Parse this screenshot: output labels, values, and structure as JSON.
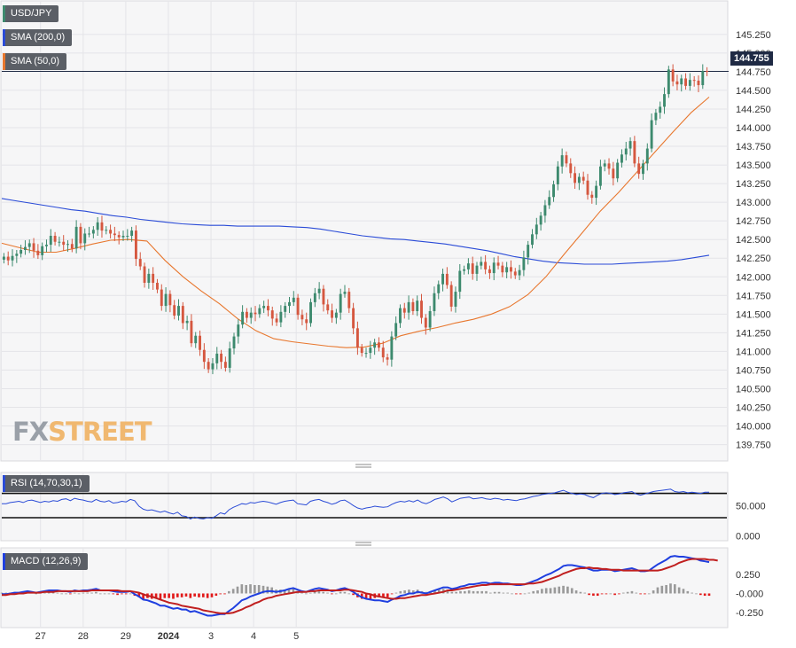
{
  "symbol": "USD/JPY",
  "last_price": "144.755",
  "watermark": {
    "part1": "FX",
    "part2": "STREET"
  },
  "colors": {
    "candle_up": "#3d8a6e",
    "candle_down": "#d5573f",
    "sma200": "#2a4bd7",
    "sma50": "#e8772e",
    "rsi": "#2a4bd7",
    "macd": "#1f3fe0",
    "signal": "#c01f1f",
    "hist_pos": "#9a9a9a",
    "hist_neg": "#e11a1a",
    "price_line": "#1f2a44"
  },
  "chart_data": [
    {
      "type": "candlestick",
      "id": "price",
      "legend": [
        "USD/JPY",
        "SMA (200,0)",
        "SMA (50,0)"
      ],
      "ylim": [
        139.65,
        145.45
      ],
      "y_ticks": [
        "145.250",
        "145.000",
        "144.750",
        "144.500",
        "144.250",
        "144.000",
        "143.750",
        "143.500",
        "143.250",
        "143.000",
        "142.750",
        "142.500",
        "142.250",
        "142.000",
        "141.750",
        "141.500",
        "141.250",
        "141.000",
        "140.750",
        "140.500",
        "140.250",
        "140.000",
        "139.750"
      ],
      "x_ticks": [
        "27",
        "28",
        "29",
        "2024",
        "3",
        "4",
        "5"
      ],
      "x_tick_index": [
        8.6,
        18.6,
        28.6,
        38.6,
        48.6,
        58.6,
        68.6
      ],
      "close": [
        142.27,
        142.22,
        142.28,
        142.31,
        142.36,
        142.4,
        142.45,
        142.35,
        142.29,
        142.41,
        142.43,
        142.55,
        142.47,
        142.47,
        142.43,
        142.44,
        142.38,
        142.67,
        142.45,
        142.58,
        142.58,
        142.63,
        142.73,
        142.62,
        142.63,
        142.58,
        142.56,
        142.53,
        142.55,
        142.55,
        142.62,
        142.24,
        142.14,
        141.92,
        142.04,
        141.92,
        141.83,
        141.61,
        141.77,
        141.62,
        141.48,
        141.61,
        141.38,
        141.41,
        141.11,
        141.21,
        141.02,
        140.86,
        140.76,
        140.84,
        140.97,
        140.86,
        140.78,
        141.04,
        141.2,
        141.36,
        141.53,
        141.45,
        141.52,
        141.5,
        141.58,
        141.61,
        141.55,
        141.44,
        141.39,
        141.53,
        141.61,
        141.66,
        141.72,
        141.49,
        141.43,
        141.38,
        141.66,
        141.78,
        141.84,
        141.63,
        141.55,
        141.45,
        141.52,
        141.77,
        141.8,
        141.58,
        141.31,
        141.05,
        140.98,
        140.98,
        141.05,
        141.12,
        141.05,
        140.92,
        140.89,
        141.2,
        141.38,
        141.58,
        141.52,
        141.66,
        141.54,
        141.68,
        141.45,
        141.32,
        141.54,
        141.78,
        141.9,
        142.04,
        141.89,
        141.6,
        141.8,
        142.08,
        142.1,
        142.18,
        142.04,
        142.15,
        142.2,
        142.1,
        142.05,
        142.19,
        142.15,
        142.06,
        142.13,
        142.07,
        142.02,
        142.09,
        142.26,
        142.43,
        142.57,
        142.7,
        142.82,
        142.96,
        143.07,
        143.24,
        143.48,
        143.63,
        143.52,
        143.39,
        143.26,
        143.34,
        143.29,
        143.1,
        143.06,
        143.22,
        143.48,
        143.52,
        143.45,
        143.32,
        143.53,
        143.64,
        143.72,
        143.82,
        143.52,
        143.38,
        143.52,
        143.72,
        144.1,
        144.2,
        144.28,
        144.45,
        144.78,
        144.62,
        144.58,
        144.66,
        144.56,
        144.64,
        144.63,
        144.57,
        144.76,
        144.755
      ],
      "sma200": [
        143.05,
        143.02,
        142.99,
        142.96,
        142.93,
        142.9,
        142.88,
        142.85,
        142.82,
        142.8,
        142.77,
        142.75,
        142.73,
        142.71,
        142.7,
        142.69,
        142.69,
        142.68,
        142.68,
        142.68,
        142.68,
        142.67,
        142.66,
        142.64,
        142.61,
        142.58,
        142.55,
        142.53,
        142.51,
        142.5,
        142.48,
        142.46,
        142.44,
        142.41,
        142.38,
        142.35,
        142.31,
        142.27,
        142.24,
        142.21,
        142.19,
        142.18,
        142.17,
        142.17,
        142.17,
        142.18,
        142.19,
        142.2,
        142.21,
        142.23,
        142.26,
        142.29
      ],
      "sma50": [
        142.45,
        142.39,
        142.33,
        142.33,
        142.38,
        142.44,
        142.49,
        142.5,
        142.48,
        142.22,
        142.0,
        141.81,
        141.64,
        141.44,
        141.28,
        141.17,
        141.13,
        141.1,
        141.07,
        141.05,
        141.06,
        141.11,
        141.21,
        141.27,
        141.32,
        141.38,
        141.43,
        141.5,
        141.6,
        141.76,
        142.0,
        142.3,
        142.59,
        142.88,
        143.13,
        143.4,
        143.67,
        143.94,
        144.2,
        144.41
      ],
      "line_x_step": 1.333
    },
    {
      "type": "line",
      "id": "rsi",
      "legend": "RSI (14,70,30,1)",
      "ylim": [
        -5,
        100
      ],
      "y_ticks": [
        "50.000",
        "0.000"
      ],
      "levels": [
        70,
        30
      ],
      "values": [
        53,
        53,
        55,
        56,
        57,
        55,
        58,
        59,
        57,
        55,
        57,
        56,
        58,
        57,
        60,
        61,
        58,
        62,
        60,
        59,
        57,
        56,
        60,
        57,
        56,
        58,
        54,
        55,
        57,
        56,
        60,
        58,
        49,
        44,
        42,
        43,
        41,
        39,
        41,
        38,
        36,
        39,
        33,
        32,
        28,
        31,
        29,
        28,
        30,
        29,
        33,
        38,
        36,
        43,
        47,
        50,
        53,
        52,
        55,
        54,
        56,
        57,
        56,
        54,
        52,
        55,
        57,
        58,
        59,
        53,
        52,
        51,
        57,
        59,
        60,
        57,
        55,
        52,
        54,
        58,
        59,
        55,
        50,
        46,
        44,
        46,
        47,
        49,
        48,
        47,
        48,
        52,
        55,
        57,
        56,
        58,
        56,
        59,
        55,
        53,
        56,
        60,
        62,
        64,
        61,
        56,
        59,
        62,
        63,
        64,
        61,
        62,
        63,
        61,
        60,
        62,
        61,
        59,
        60,
        59,
        58,
        60,
        61,
        63,
        65,
        66,
        68,
        69,
        70,
        71,
        73,
        75,
        72,
        70,
        68,
        69,
        68,
        65,
        63,
        67,
        70,
        71,
        70,
        68,
        69,
        71,
        72,
        73,
        69,
        67,
        69,
        71,
        73,
        74,
        75,
        76,
        77,
        73,
        72,
        73,
        71,
        72,
        71,
        70,
        72,
        72
      ]
    },
    {
      "type": "line",
      "id": "macd",
      "legend": "MACD (12,26,9)",
      "ylim": [
        -0.4,
        0.55
      ],
      "y_ticks": [
        "0.250",
        "-0.000",
        "-0.250"
      ],
      "macd": [
        -0.01,
        -0.01,
        0.0,
        0.01,
        0.01,
        0.02,
        0.03,
        0.02,
        0.01,
        0.02,
        0.03,
        0.04,
        0.04,
        0.04,
        0.03,
        0.03,
        0.02,
        0.04,
        0.03,
        0.04,
        0.04,
        0.05,
        0.06,
        0.04,
        0.04,
        0.04,
        0.03,
        0.02,
        0.02,
        0.02,
        0.03,
        -0.01,
        -0.04,
        -0.08,
        -0.09,
        -0.11,
        -0.13,
        -0.16,
        -0.16,
        -0.18,
        -0.2,
        -0.19,
        -0.21,
        -0.21,
        -0.24,
        -0.23,
        -0.25,
        -0.27,
        -0.29,
        -0.29,
        -0.28,
        -0.27,
        -0.27,
        -0.23,
        -0.19,
        -0.14,
        -0.09,
        -0.07,
        -0.04,
        -0.02,
        0.0,
        0.02,
        0.03,
        0.03,
        0.02,
        0.03,
        0.04,
        0.06,
        0.07,
        0.05,
        0.03,
        0.02,
        0.04,
        0.06,
        0.07,
        0.06,
        0.05,
        0.03,
        0.04,
        0.06,
        0.07,
        0.05,
        0.02,
        -0.02,
        -0.05,
        -0.07,
        -0.08,
        -0.09,
        -0.09,
        -0.1,
        -0.11,
        -0.08,
        -0.06,
        -0.03,
        -0.02,
        0.0,
        0.0,
        0.02,
        0.01,
        0.0,
        0.02,
        0.04,
        0.06,
        0.08,
        0.08,
        0.06,
        0.07,
        0.09,
        0.1,
        0.12,
        0.12,
        0.13,
        0.14,
        0.14,
        0.13,
        0.14,
        0.14,
        0.13,
        0.13,
        0.12,
        0.11,
        0.11,
        0.12,
        0.14,
        0.16,
        0.18,
        0.21,
        0.24,
        0.26,
        0.29,
        0.32,
        0.36,
        0.37,
        0.37,
        0.36,
        0.35,
        0.34,
        0.32,
        0.3,
        0.3,
        0.31,
        0.31,
        0.31,
        0.29,
        0.3,
        0.31,
        0.32,
        0.33,
        0.31,
        0.29,
        0.29,
        0.3,
        0.34,
        0.38,
        0.41,
        0.44,
        0.48,
        0.49,
        0.48,
        0.48,
        0.47,
        0.46,
        0.45,
        0.43,
        0.42,
        0.41
      ],
      "signal": [
        -0.02,
        -0.02,
        -0.01,
        -0.01,
        0.0,
        0.0,
        0.01,
        0.01,
        0.01,
        0.01,
        0.02,
        0.02,
        0.02,
        0.03,
        0.03,
        0.03,
        0.03,
        0.03,
        0.03,
        0.03,
        0.03,
        0.04,
        0.04,
        0.04,
        0.04,
        0.04,
        0.04,
        0.04,
        0.03,
        0.03,
        0.03,
        0.02,
        0.01,
        -0.01,
        -0.03,
        -0.04,
        -0.06,
        -0.08,
        -0.1,
        -0.12,
        -0.13,
        -0.14,
        -0.16,
        -0.17,
        -0.18,
        -0.19,
        -0.2,
        -0.22,
        -0.23,
        -0.24,
        -0.25,
        -0.26,
        -0.26,
        -0.26,
        -0.25,
        -0.23,
        -0.21,
        -0.18,
        -0.16,
        -0.13,
        -0.11,
        -0.08,
        -0.06,
        -0.05,
        -0.03,
        -0.02,
        -0.01,
        0.0,
        0.01,
        0.02,
        0.02,
        0.02,
        0.03,
        0.03,
        0.04,
        0.04,
        0.04,
        0.04,
        0.04,
        0.04,
        0.05,
        0.05,
        0.04,
        0.03,
        0.02,
        0.0,
        -0.01,
        -0.03,
        -0.04,
        -0.05,
        -0.06,
        -0.07,
        -0.07,
        -0.06,
        -0.06,
        -0.05,
        -0.04,
        -0.03,
        -0.02,
        -0.02,
        -0.01,
        0.0,
        0.01,
        0.02,
        0.04,
        0.04,
        0.05,
        0.06,
        0.07,
        0.08,
        0.09,
        0.1,
        0.11,
        0.11,
        0.12,
        0.12,
        0.12,
        0.12,
        0.12,
        0.12,
        0.12,
        0.12,
        0.12,
        0.13,
        0.13,
        0.14,
        0.15,
        0.17,
        0.19,
        0.21,
        0.23,
        0.26,
        0.28,
        0.3,
        0.32,
        0.33,
        0.33,
        0.34,
        0.33,
        0.33,
        0.32,
        0.32,
        0.31,
        0.31,
        0.31,
        0.3,
        0.3,
        0.3,
        0.3,
        0.3,
        0.3,
        0.3,
        0.3,
        0.3,
        0.31,
        0.33,
        0.35,
        0.37,
        0.4,
        0.42,
        0.44,
        0.45,
        0.45,
        0.45,
        0.45,
        0.44,
        0.44,
        0.43
      ]
    }
  ]
}
